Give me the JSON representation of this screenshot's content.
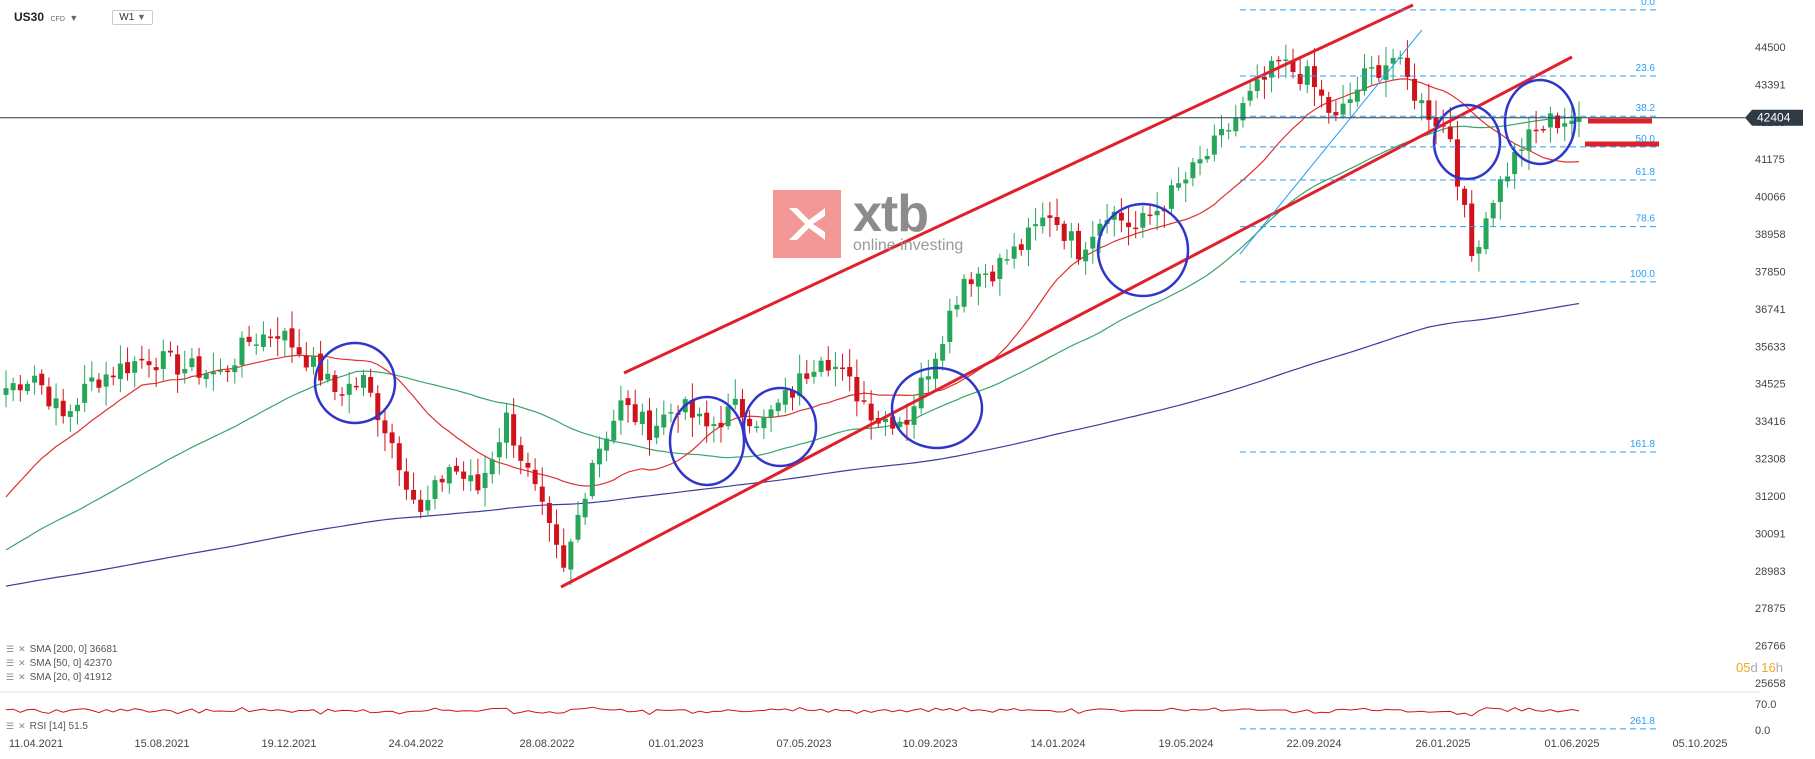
{
  "header": {
    "symbol": "US30",
    "instrument_type": "CFD",
    "timeframe": "W1"
  },
  "watermark": {
    "brand": "xtb",
    "tagline": "online investing",
    "color": "#f28b8b"
  },
  "current_price": "42404",
  "countdown": {
    "days": "05",
    "days_unit": "d",
    "hours": "16",
    "hours_unit": "h"
  },
  "indicators": {
    "sma200": "SMA [200, 0] 36681",
    "sma50": "SMA [50, 0] 42370",
    "sma20": "SMA [20, 0] 41912",
    "rsi": "RSI [14] 51.5"
  },
  "colors": {
    "up": "#26a65b",
    "down": "#d0121b",
    "sma20": "#e03030",
    "sma50": "#3aa56a",
    "sma200": "#3b3f9a",
    "channel": "#e0202a",
    "circles": "#2f36c9",
    "fib": "#2a9df4",
    "price_tag": "#2e3a46"
  },
  "chart_data": {
    "type": "candlestick",
    "price_axis": {
      "min": 25658,
      "max": 44500,
      "ticks": [
        "44500",
        "43391",
        "42283",
        "41175",
        "40066",
        "38958",
        "37850",
        "36741",
        "35633",
        "34525",
        "33416",
        "32308",
        "31200",
        "30091",
        "28983",
        "27875",
        "26766",
        "25658"
      ]
    },
    "time_axis": {
      "labels": [
        "11.04.2021",
        "15.08.2021",
        "19.12.2021",
        "24.04.2022",
        "28.08.2022",
        "01.01.2023",
        "07.05.2023",
        "10.09.2023",
        "14.01.2024",
        "19.05.2024",
        "22.09.2024",
        "26.01.2025",
        "01.06.2025",
        "05.10.2025"
      ]
    },
    "fibonacci_levels": [
      "0.0",
      "23.6",
      "38.2",
      "50.0",
      "61.8",
      "78.6",
      "100.0",
      "161.8",
      "261.8"
    ],
    "fib_prices": [
      45600,
      43640,
      42450,
      41540,
      40560,
      39180,
      37540,
      32500,
      24300
    ],
    "close_anchors": [
      [
        0,
        34400
      ],
      [
        4,
        34800
      ],
      [
        8,
        33500
      ],
      [
        12,
        34600
      ],
      [
        16,
        35000
      ],
      [
        20,
        35300
      ],
      [
        25,
        35000
      ],
      [
        30,
        34800
      ],
      [
        34,
        35800
      ],
      [
        38,
        36100
      ],
      [
        42,
        35300
      ],
      [
        46,
        34300
      ],
      [
        50,
        34600
      ],
      [
        54,
        32800
      ],
      [
        58,
        30600
      ],
      [
        62,
        32100
      ],
      [
        66,
        31400
      ],
      [
        70,
        33500
      ],
      [
        74,
        31300
      ],
      [
        78,
        28900
      ],
      [
        82,
        32300
      ],
      [
        86,
        33900
      ],
      [
        90,
        33200
      ],
      [
        94,
        33900
      ],
      [
        98,
        33200
      ],
      [
        102,
        33800
      ],
      [
        106,
        33400
      ],
      [
        110,
        34300
      ],
      [
        114,
        35500
      ],
      [
        118,
        34500
      ],
      [
        122,
        33500
      ],
      [
        126,
        33500
      ],
      [
        130,
        35500
      ],
      [
        134,
        37700
      ],
      [
        138,
        37900
      ],
      [
        142,
        38600
      ],
      [
        146,
        39600
      ],
      [
        150,
        38500
      ],
      [
        154,
        39700
      ],
      [
        158,
        39100
      ],
      [
        162,
        39900
      ],
      [
        166,
        40800
      ],
      [
        170,
        41800
      ],
      [
        174,
        43000
      ],
      [
        178,
        44000
      ],
      [
        182,
        43600
      ],
      [
        186,
        42300
      ],
      [
        190,
        43600
      ],
      [
        194,
        44200
      ],
      [
        198,
        42800
      ],
      [
        202,
        41900
      ],
      [
        205,
        38300
      ],
      [
        208,
        40100
      ],
      [
        212,
        41600
      ],
      [
        216,
        42300
      ],
      [
        220,
        42400
      ]
    ],
    "rsi": {
      "range": [
        0,
        70
      ],
      "ticks": [
        "70.0",
        "0.0"
      ],
      "last": 51.5
    }
  }
}
